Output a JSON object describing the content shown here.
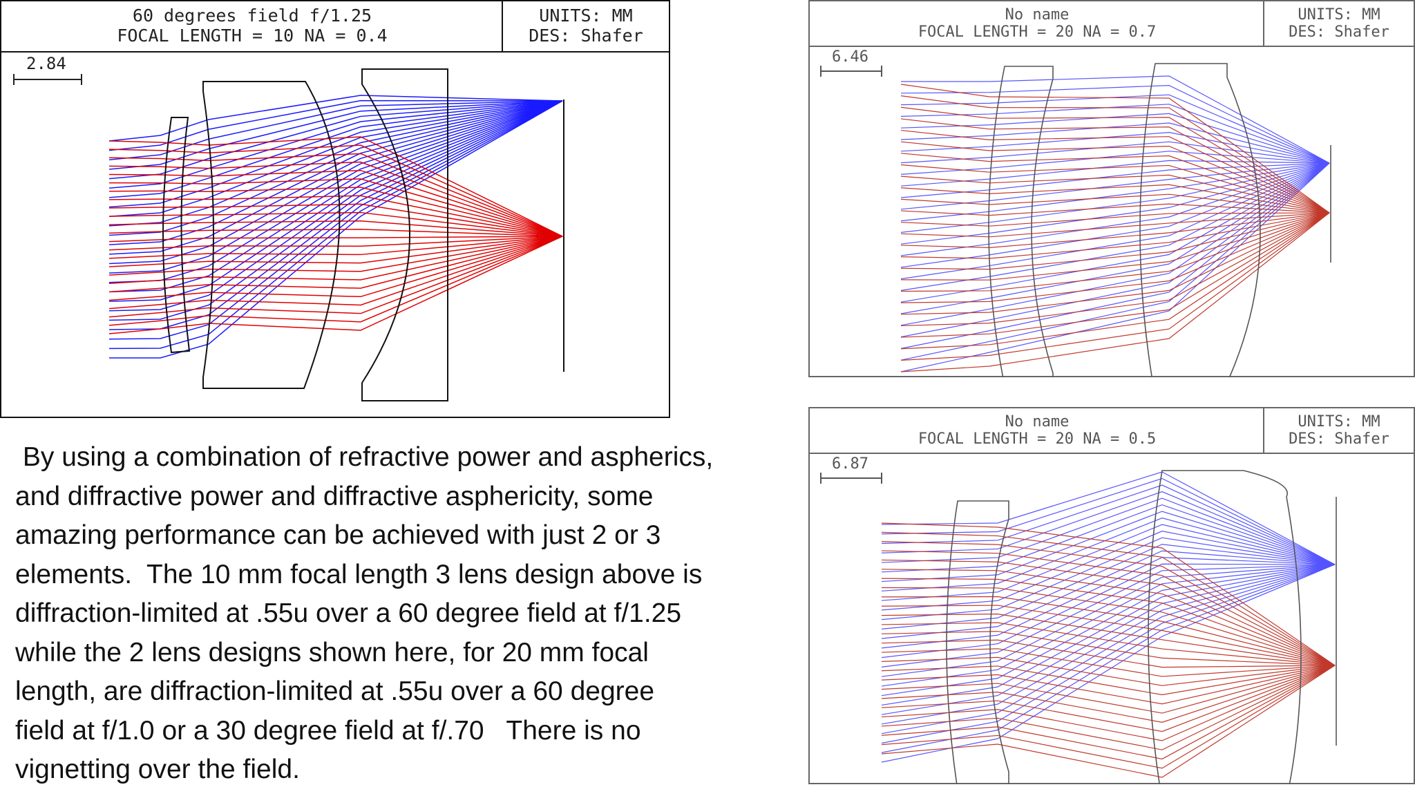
{
  "panels": [
    {
      "title_line1": "60 degrees field f/1.25",
      "title_line2": "FOCAL LENGTH = 10   NA = 0.4",
      "units": "UNITS: MM",
      "designer": "DES: Shafer",
      "scale_value": "2.84",
      "lens_count": 3,
      "colors": {
        "field_a": "#1a1aff",
        "field_b": "#e00000"
      }
    },
    {
      "title_line1": "No name",
      "title_line2": "FOCAL LENGTH = 20   NA = 0.7",
      "units": "UNITS: MM",
      "designer": "DES: Shafer",
      "scale_value": "6.46",
      "lens_count": 2,
      "colors": {
        "field_a": "#5555ff",
        "field_b": "#c0392b"
      }
    },
    {
      "title_line1": "No name",
      "title_line2": "FOCAL LENGTH = 20   NA = 0.5",
      "units": "UNITS: MM",
      "designer": "DES: Shafer",
      "scale_value": "6.87",
      "lens_count": 2,
      "colors": {
        "field_a": "#5555ff",
        "field_b": "#c0392b"
      }
    }
  ],
  "description": " By using a combination of refractive power and aspherics,\nand diffractive power and diffractive asphericity, some\namazing performance can be achieved with just 2 or 3\nelements.  The 10 mm focal length 3 lens design above is\ndiffraction-limited at .55u over a 60 degree field at f/1.25\nwhile the 2 lens designs shown here, for 20 mm focal\nlength, are diffraction-limited at .55u over a 60 degree\nfield at f/1.0 or a 30 degree field at f/.70   There is no\nvignetting over the field."
}
